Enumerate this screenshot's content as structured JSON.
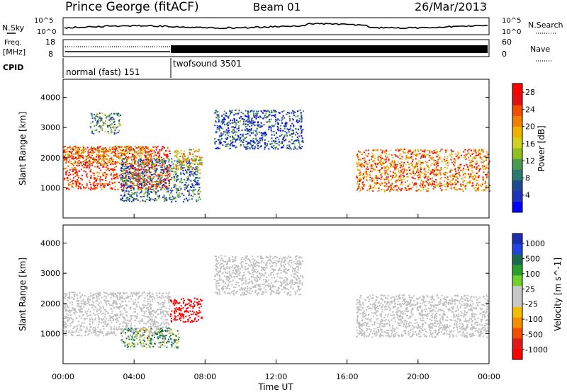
{
  "header": {
    "station": "Prince George (fitACF)",
    "beam": "Beam 01",
    "date": "26/Mar/2013"
  },
  "noise_panel": {
    "left_label": "N.Sky",
    "right_label": "N.Search",
    "left_ticks": [
      "10^5",
      "10^0"
    ],
    "right_ticks": [
      "10^5",
      "10^0"
    ]
  },
  "freq_panel": {
    "left_label_line1": "Freq.",
    "left_label_line2": "[MHz]",
    "right_label": "Nave",
    "left_ticks": [
      "18",
      "8"
    ],
    "right_ticks": [
      "60",
      "0"
    ]
  },
  "cpid_panel": {
    "label": "CPID",
    "modes": [
      {
        "name": "normal (fast) 151",
        "start_hour": 0,
        "end_hour": 6.0
      },
      {
        "name": "twofsound 3501",
        "start_hour": 6.0,
        "end_hour": 24
      }
    ]
  },
  "colors": {
    "power_scale": [
      "#0000ff",
      "#2233bb",
      "#1e4a90",
      "#2a7a70",
      "#4a9a50",
      "#90c020",
      "#d0d020",
      "#f0b000",
      "#f08000",
      "#f05000",
      "#e01010",
      "#ff0000"
    ],
    "velocity_scale": [
      "#1a2fb0",
      "#2244dd",
      "#1a6a50",
      "#2aa02a",
      "#70d030",
      "#c8c8c8",
      "#c8c8c8",
      "#f0c000",
      "#f09000",
      "#f05000",
      "#e01a1a",
      "#ff0000"
    ],
    "ground_scatter": "#bebebe"
  },
  "chart_data": [
    {
      "type": "heatmap",
      "title": "Power",
      "xlabel": "Time UT",
      "ylabel": "Slant Range [km]",
      "xlim": [
        0,
        24
      ],
      "ylim": [
        0,
        4600
      ],
      "x_ticks": [
        "00:00",
        "04:00",
        "08:00",
        "12:00",
        "16:00",
        "20:00",
        "00:00"
      ],
      "y_ticks": [
        "1000",
        "2000",
        "3000",
        "4000"
      ],
      "colorbar": {
        "label": "Power [dB]",
        "range": [
          0,
          30
        ],
        "tick_labels": [
          "4",
          "8",
          "12",
          "16",
          "20",
          "24",
          "28"
        ]
      },
      "echo_regions": [
        {
          "t_start": 0.0,
          "t_end": 6.0,
          "range_low": 950,
          "range_high": 2400,
          "power_db": 26
        },
        {
          "t_start": 0.0,
          "t_end": 5.0,
          "range_low": 1800,
          "range_high": 2400,
          "power_db": 20
        },
        {
          "t_start": 1.5,
          "t_end": 3.2,
          "range_low": 2800,
          "range_high": 3500,
          "power_db": 10
        },
        {
          "t_start": 3.2,
          "t_end": 7.7,
          "range_low": 550,
          "range_high": 2000,
          "power_db": 8
        },
        {
          "t_start": 6.2,
          "t_end": 7.8,
          "range_low": 1600,
          "range_high": 2300,
          "power_db": 18
        },
        {
          "t_start": 8.5,
          "t_end": 13.5,
          "range_low": 2300,
          "range_high": 3600,
          "power_db": 6
        },
        {
          "t_start": 16.5,
          "t_end": 24.0,
          "range_low": 900,
          "range_high": 2300,
          "power_db": 22
        }
      ]
    },
    {
      "type": "heatmap",
      "title": "Velocity",
      "xlabel": "Time UT",
      "ylabel": "Slant Range [km]",
      "xlim": [
        0,
        24
      ],
      "ylim": [
        0,
        4600
      ],
      "x_ticks": [
        "00:00",
        "04:00",
        "08:00",
        "12:00",
        "16:00",
        "20:00",
        "00:00"
      ],
      "y_ticks": [
        "1000",
        "2000",
        "3000",
        "4000"
      ],
      "colorbar": {
        "label": "Velocity [m s^-1]",
        "tick_labels": [
          "1000",
          "500",
          "100",
          "25",
          "-25",
          "-100",
          "-500",
          "-1000"
        ]
      },
      "echo_regions": [
        {
          "t_start": 0.0,
          "t_end": 6.0,
          "range_low": 950,
          "range_high": 2400,
          "velocity": 0
        },
        {
          "t_start": 3.2,
          "t_end": 6.5,
          "range_low": 550,
          "range_high": 1200,
          "velocity": 150
        },
        {
          "t_start": 6.0,
          "t_end": 7.8,
          "range_low": 1400,
          "range_high": 2200,
          "velocity": -800
        },
        {
          "t_start": 8.5,
          "t_end": 13.5,
          "range_low": 2300,
          "range_high": 3600,
          "velocity": 0
        },
        {
          "t_start": 16.5,
          "t_end": 24.0,
          "range_low": 900,
          "range_high": 2300,
          "velocity": 0
        }
      ]
    }
  ]
}
